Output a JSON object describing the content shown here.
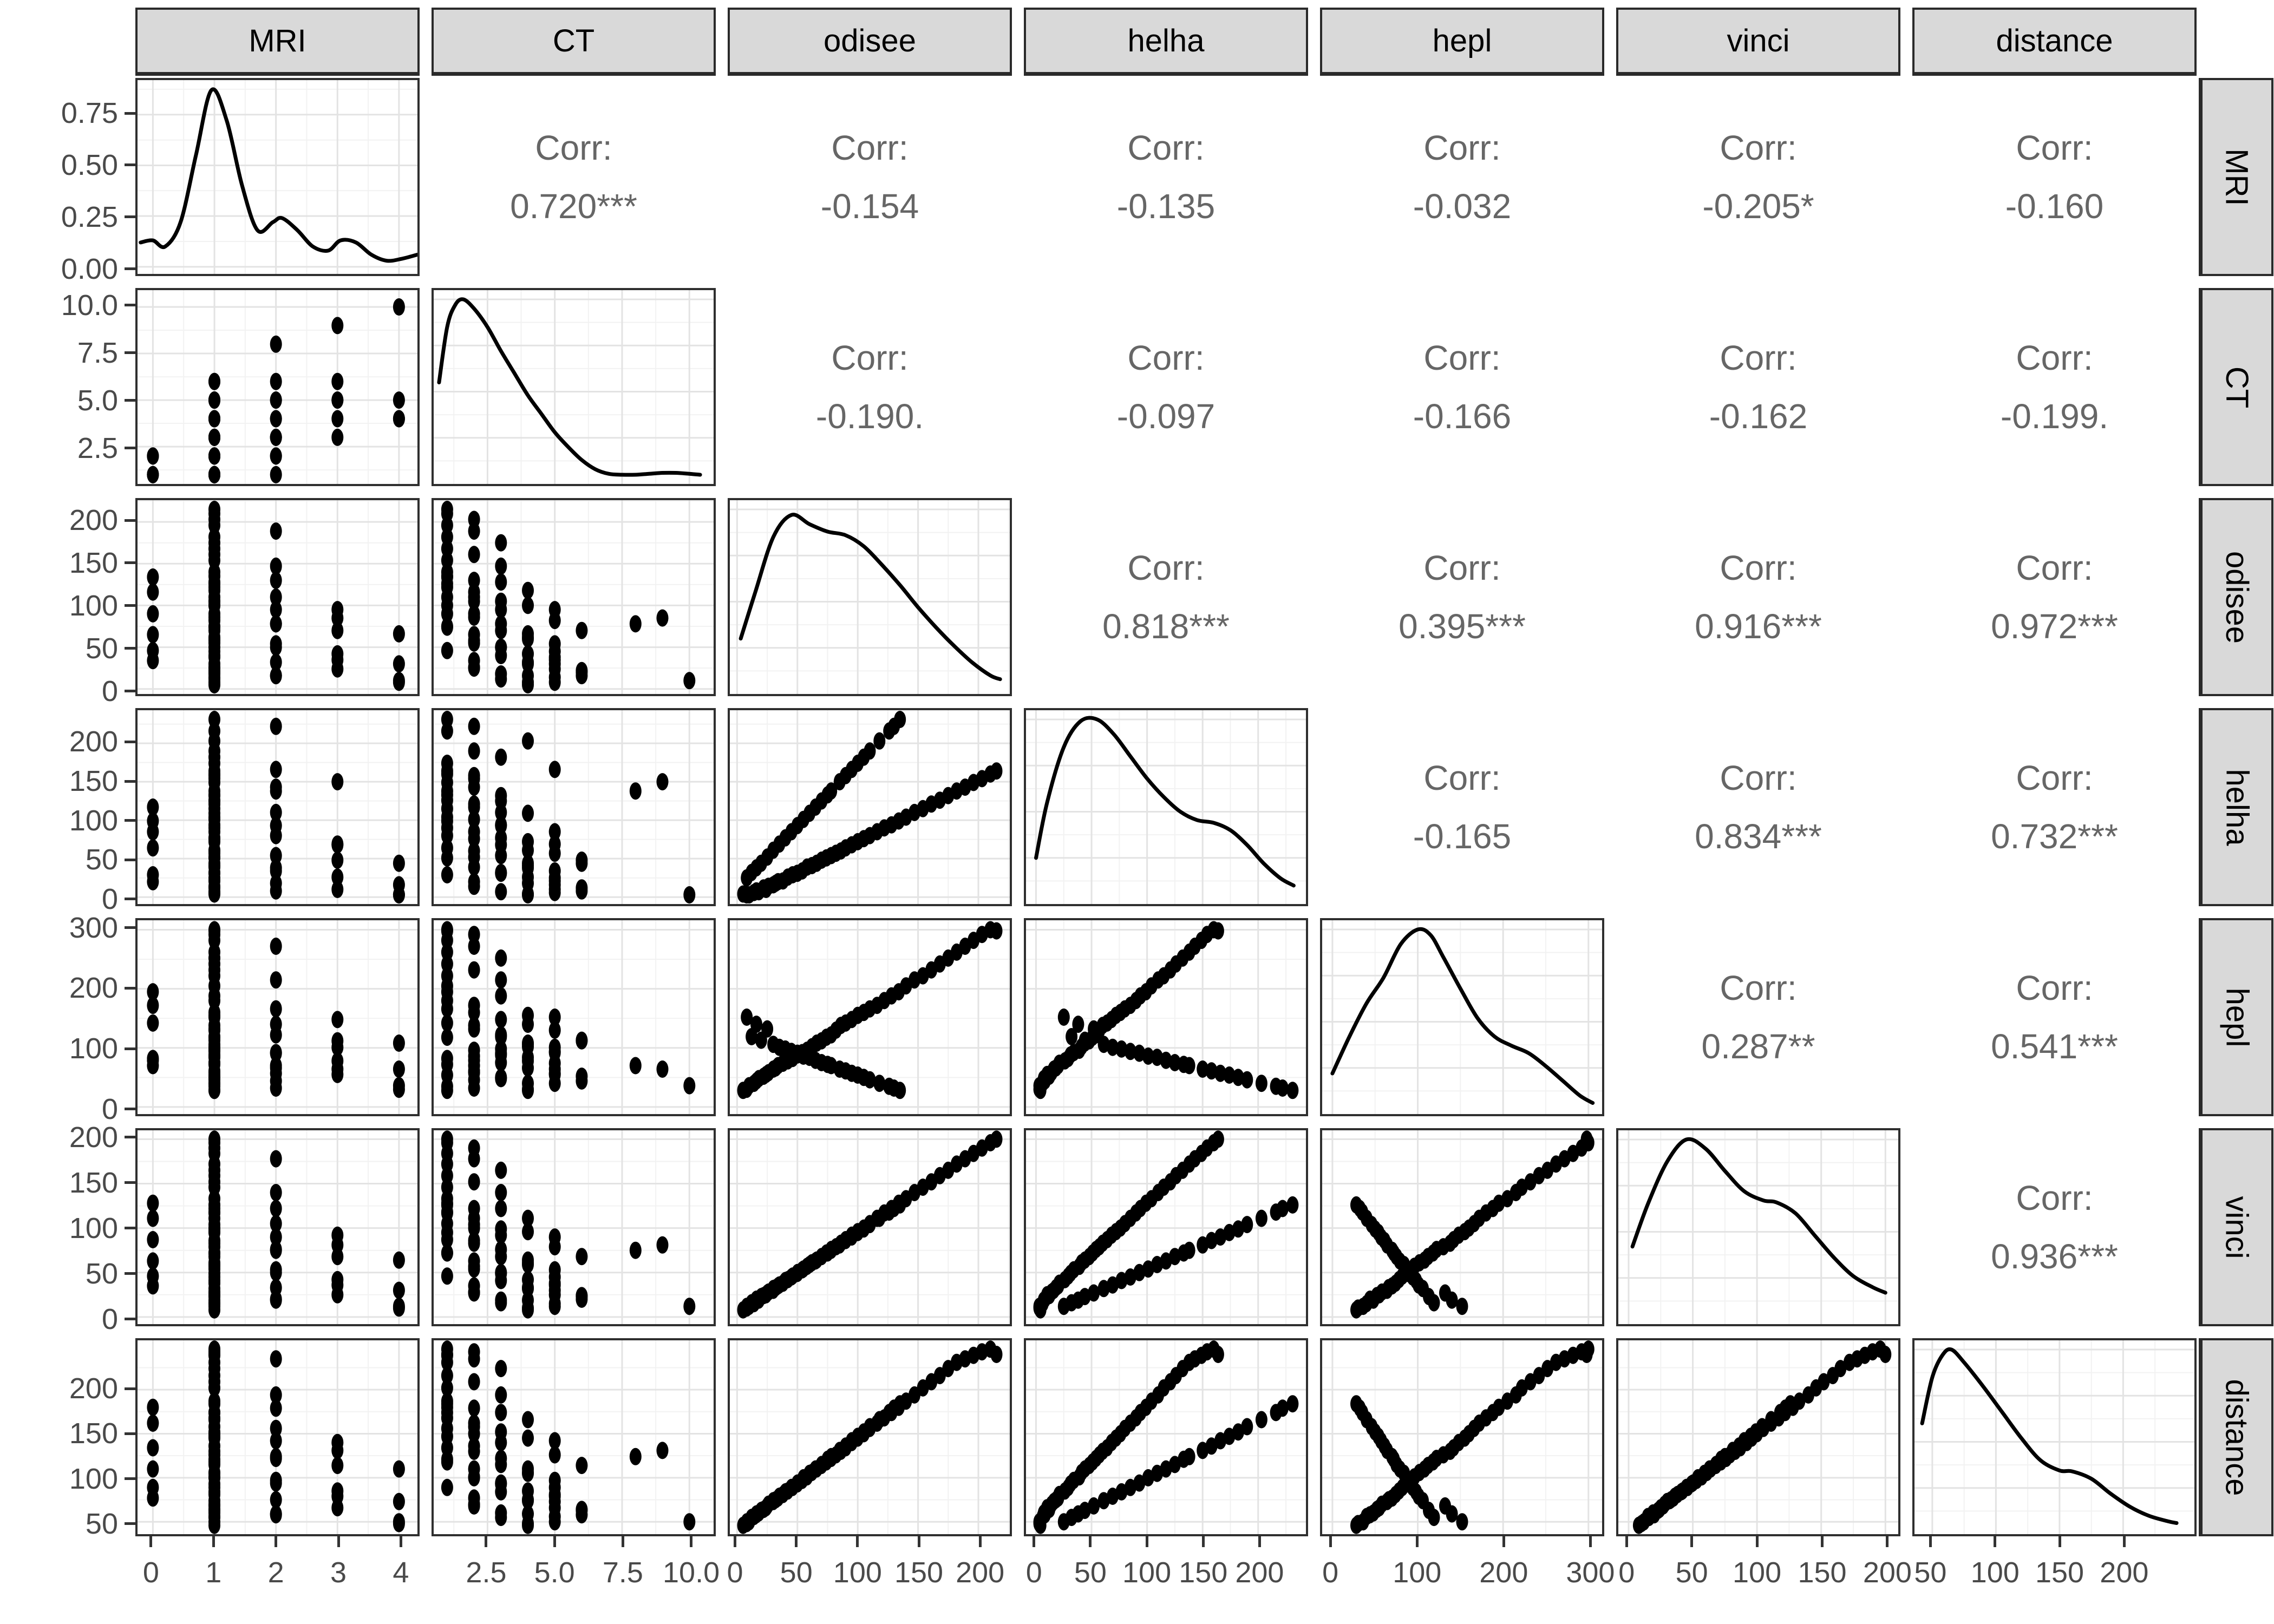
{
  "chart_data": {
    "type": "scatter",
    "plot_kind": "scatterplot-matrix (ggpairs)",
    "title": "",
    "xlabel": "",
    "ylabel": "",
    "legend": "none",
    "grid": "on",
    "variables": [
      "MRI",
      "CT",
      "odisee",
      "helha",
      "hepl",
      "vinci",
      "distance"
    ],
    "corr_label_prefix": "Corr:",
    "correlations": {
      "MRI": {
        "CT": "0.720***",
        "odisee": "-0.154",
        "helha": "-0.135",
        "hepl": "-0.032",
        "vinci": "-0.205*",
        "distance": "-0.160"
      },
      "CT": {
        "odisee": "-0.190.",
        "helha": "-0.097",
        "hepl": "-0.166",
        "vinci": "-0.162",
        "distance": "-0.199."
      },
      "odisee": {
        "helha": "0.818***",
        "hepl": "0.395***",
        "vinci": "0.916***",
        "distance": "0.972***"
      },
      "helha": {
        "hepl": "-0.165",
        "vinci": "0.834***",
        "distance": "0.732***"
      },
      "hepl": {
        "vinci": "0.287**",
        "distance": "0.541***"
      },
      "vinci": {
        "distance": "0.936***"
      }
    },
    "axes": {
      "MRI": {
        "domain": [
          -0.25,
          4.3
        ],
        "ticks": [
          0,
          1,
          2,
          3,
          4
        ],
        "labels": [
          "0",
          "1",
          "2",
          "3",
          "4"
        ]
      },
      "CT": {
        "domain": [
          0.5,
          10.9
        ],
        "ticks": [
          2.5,
          5.0,
          7.5,
          10.0
        ],
        "labels": [
          "2.5",
          "5.0",
          "7.5",
          "10.0"
        ]
      },
      "odisee": {
        "domain": [
          -6,
          226
        ],
        "ticks": [
          0,
          50,
          100,
          150,
          200
        ],
        "labels": [
          "0",
          "50",
          "100",
          "150",
          "200"
        ]
      },
      "helha": {
        "domain": [
          -9,
          243
        ],
        "ticks": [
          0,
          50,
          100,
          150,
          200
        ],
        "labels": [
          "0",
          "50",
          "100",
          "150",
          "200"
        ]
      },
      "hepl": {
        "domain": [
          -12,
          316
        ],
        "ticks": [
          0,
          100,
          200,
          300
        ],
        "labels": [
          "0",
          "100",
          "200",
          "300"
        ]
      },
      "vinci": {
        "domain": [
          -8,
          210
        ],
        "ticks": [
          0,
          50,
          100,
          150,
          200
        ],
        "labels": [
          "0",
          "50",
          "100",
          "150",
          "200"
        ]
      },
      "distance": {
        "domain": [
          36,
          256
        ],
        "ticks": [
          50,
          100,
          150,
          200
        ],
        "labels": [
          "50",
          "100",
          "150",
          "200"
        ]
      }
    },
    "density_y_axis": {
      "domain": [
        -0.035,
        0.92
      ],
      "ticks": [
        0,
        0.25,
        0.5,
        0.75
      ],
      "labels": [
        "0.00",
        "0.25",
        "0.50",
        "0.75"
      ]
    },
    "densities": {
      "MRI": [
        [
          -0.2,
          0.12
        ],
        [
          0,
          0.13
        ],
        [
          0.2,
          0.1
        ],
        [
          0.45,
          0.22
        ],
        [
          0.7,
          0.55
        ],
        [
          0.95,
          0.87
        ],
        [
          1.2,
          0.72
        ],
        [
          1.45,
          0.4
        ],
        [
          1.7,
          0.18
        ],
        [
          1.95,
          0.22
        ],
        [
          2.1,
          0.24
        ],
        [
          2.35,
          0.18
        ],
        [
          2.6,
          0.1
        ],
        [
          2.85,
          0.08
        ],
        [
          3.05,
          0.13
        ],
        [
          3.3,
          0.12
        ],
        [
          3.55,
          0.06
        ],
        [
          3.8,
          0.03
        ],
        [
          4.05,
          0.04
        ],
        [
          4.3,
          0.06
        ]
      ],
      "CT": [
        [
          0.7,
          0.55
        ],
        [
          1.0,
          0.85
        ],
        [
          1.3,
          0.97
        ],
        [
          1.6,
          1.0
        ],
        [
          2.0,
          0.95
        ],
        [
          2.5,
          0.85
        ],
        [
          3.0,
          0.72
        ],
        [
          3.5,
          0.6
        ],
        [
          4.0,
          0.48
        ],
        [
          4.5,
          0.38
        ],
        [
          5.0,
          0.28
        ],
        [
          5.5,
          0.2
        ],
        [
          6.0,
          0.13
        ],
        [
          6.5,
          0.08
        ],
        [
          7.0,
          0.055
        ],
        [
          7.5,
          0.05
        ],
        [
          8.0,
          0.05
        ],
        [
          8.5,
          0.055
        ],
        [
          9.0,
          0.06
        ],
        [
          9.5,
          0.06
        ],
        [
          10.0,
          0.055
        ],
        [
          10.4,
          0.05
        ]
      ],
      "odisee": [
        [
          3,
          0.3
        ],
        [
          15,
          0.55
        ],
        [
          30,
          0.85
        ],
        [
          45,
          0.97
        ],
        [
          60,
          0.92
        ],
        [
          75,
          0.88
        ],
        [
          90,
          0.86
        ],
        [
          105,
          0.8
        ],
        [
          120,
          0.7
        ],
        [
          135,
          0.59
        ],
        [
          150,
          0.47
        ],
        [
          165,
          0.36
        ],
        [
          180,
          0.26
        ],
        [
          195,
          0.17
        ],
        [
          210,
          0.1
        ],
        [
          218,
          0.08
        ]
      ],
      "helha": [
        [
          0,
          0.25
        ],
        [
          10,
          0.55
        ],
        [
          25,
          0.85
        ],
        [
          40,
          0.99
        ],
        [
          55,
          1.0
        ],
        [
          70,
          0.92
        ],
        [
          85,
          0.8
        ],
        [
          100,
          0.68
        ],
        [
          115,
          0.58
        ],
        [
          130,
          0.5
        ],
        [
          145,
          0.455
        ],
        [
          160,
          0.44
        ],
        [
          175,
          0.4
        ],
        [
          190,
          0.32
        ],
        [
          205,
          0.22
        ],
        [
          220,
          0.14
        ],
        [
          232,
          0.1
        ]
      ],
      "hepl": [
        [
          0,
          0.22
        ],
        [
          20,
          0.42
        ],
        [
          40,
          0.6
        ],
        [
          60,
          0.74
        ],
        [
          80,
          0.92
        ],
        [
          100,
          1.0
        ],
        [
          115,
          0.97
        ],
        [
          130,
          0.85
        ],
        [
          150,
          0.68
        ],
        [
          170,
          0.52
        ],
        [
          190,
          0.42
        ],
        [
          210,
          0.37
        ],
        [
          230,
          0.33
        ],
        [
          250,
          0.26
        ],
        [
          270,
          0.18
        ],
        [
          290,
          0.1
        ],
        [
          305,
          0.06
        ]
      ],
      "vinci": [
        [
          3,
          0.42
        ],
        [
          15,
          0.65
        ],
        [
          30,
          0.88
        ],
        [
          45,
          1.0
        ],
        [
          60,
          0.95
        ],
        [
          75,
          0.83
        ],
        [
          90,
          0.72
        ],
        [
          105,
          0.67
        ],
        [
          115,
          0.66
        ],
        [
          130,
          0.6
        ],
        [
          145,
          0.48
        ],
        [
          160,
          0.36
        ],
        [
          175,
          0.26
        ],
        [
          190,
          0.2
        ],
        [
          200,
          0.17
        ]
      ],
      "distance": [
        [
          42,
          0.6
        ],
        [
          50,
          0.85
        ],
        [
          58,
          0.97
        ],
        [
          65,
          1.0
        ],
        [
          75,
          0.93
        ],
        [
          90,
          0.8
        ],
        [
          105,
          0.66
        ],
        [
          120,
          0.52
        ],
        [
          135,
          0.4
        ],
        [
          150,
          0.345
        ],
        [
          160,
          0.34
        ],
        [
          175,
          0.3
        ],
        [
          190,
          0.22
        ],
        [
          205,
          0.15
        ],
        [
          220,
          0.1
        ],
        [
          235,
          0.07
        ],
        [
          242,
          0.06
        ]
      ]
    },
    "observations_columns": [
      "MRI",
      "CT",
      "odisee",
      "helha",
      "hepl",
      "vinci",
      "distance"
    ],
    "observations": [
      [
        1,
        4,
        5,
        4,
        28,
        8,
        46
      ],
      [
        4,
        4,
        8,
        3,
        30,
        10,
        48
      ],
      [
        4,
        10,
        10,
        3,
        36,
        12,
        50
      ],
      [
        1,
        5,
        14,
        6,
        40,
        15,
        56
      ],
      [
        2,
        6,
        16,
        8,
        44,
        20,
        58
      ],
      [
        1,
        3,
        18,
        7,
        48,
        19,
        60
      ],
      [
        1,
        6,
        22,
        12,
        52,
        24,
        64
      ],
      [
        3,
        5,
        24,
        10,
        55,
        25,
        66
      ],
      [
        1,
        2,
        26,
        14,
        58,
        28,
        70
      ],
      [
        4,
        5,
        30,
        16,
        64,
        30,
        73
      ],
      [
        2,
        4,
        32,
        18,
        66,
        33,
        75
      ],
      [
        0,
        2,
        34,
        20,
        70,
        35,
        77
      ],
      [
        1,
        5,
        38,
        21,
        74,
        38,
        81
      ],
      [
        3,
        4,
        42,
        26,
        78,
        42,
        85
      ],
      [
        0,
        1,
        46,
        29,
        82,
        46,
        89
      ],
      [
        1,
        3,
        50,
        31,
        88,
        49,
        93
      ],
      [
        2,
        5,
        54,
        34,
        92,
        53,
        97
      ],
      [
        1,
        2,
        58,
        39,
        96,
        57,
        101
      ],
      [
        1,
        4,
        62,
        41,
        102,
        61,
        106
      ],
      [
        4,
        4,
        66,
        44,
        108,
        64,
        110
      ],
      [
        3,
        6,
        70,
        48,
        112,
        68,
        114
      ],
      [
        1,
        1,
        74,
        51,
        118,
        72,
        118
      ],
      [
        2,
        3,
        78,
        54,
        122,
        76,
        122
      ],
      [
        1,
        5,
        82,
        57,
        130,
        79,
        126
      ],
      [
        1,
        2,
        86,
        60,
        138,
        83,
        130
      ],
      [
        0,
        1,
        90,
        64,
        142,
        87,
        134
      ],
      [
        3,
        3,
        95,
        68,
        148,
        92,
        140
      ],
      [
        1,
        4,
        100,
        72,
        155,
        96,
        145
      ],
      [
        1,
        2,
        105,
        76,
        160,
        100,
        150
      ],
      [
        2,
        1,
        110,
        80,
        166,
        105,
        156
      ],
      [
        0,
        2,
        116,
        85,
        172,
        111,
        162
      ],
      [
        1,
        1,
        122,
        90,
        180,
        117,
        168
      ],
      [
        1,
        3,
        128,
        94,
        188,
        122,
        174
      ],
      [
        0,
        1,
        134,
        99,
        195,
        128,
        180
      ],
      [
        1,
        1,
        140,
        104,
        205,
        133,
        187
      ],
      [
        2,
        3,
        147,
        110,
        215,
        140,
        194
      ],
      [
        1,
        1,
        154,
        115,
        222,
        146,
        202
      ],
      [
        1,
        2,
        161,
        121,
        232,
        152,
        209
      ],
      [
        1,
        1,
        168,
        126,
        242,
        159,
        216
      ],
      [
        1,
        3,
        175,
        132,
        252,
        165,
        224
      ],
      [
        1,
        1,
        182,
        138,
        262,
        172,
        231
      ],
      [
        2,
        2,
        189,
        143,
        272,
        178,
        235
      ],
      [
        1,
        1,
        196,
        149,
        282,
        184,
        239
      ],
      [
        1,
        2,
        203,
        154,
        292,
        190,
        243
      ],
      [
        1,
        1,
        210,
        160,
        300,
        196,
        246
      ],
      [
        1,
        1,
        215,
        164,
        298,
        200,
        240
      ],
      [
        1,
        5,
        8,
        25,
        152,
        12,
        50
      ],
      [
        1,
        3,
        12,
        32,
        119,
        16,
        55
      ],
      [
        2,
        4,
        16,
        38,
        140,
        19,
        59
      ],
      [
        1,
        6,
        20,
        44,
        113,
        23,
        63
      ],
      [
        1,
        2,
        25,
        52,
        132,
        27,
        68
      ],
      [
        1,
        4,
        30,
        61,
        106,
        32,
        74
      ],
      [
        3,
        5,
        35,
        69,
        101,
        36,
        79
      ],
      [
        1,
        3,
        40,
        77,
        98,
        41,
        84
      ],
      [
        1,
        5,
        45,
        85,
        94,
        45,
        89
      ],
      [
        2,
        3,
        50,
        93,
        91,
        50,
        94
      ],
      [
        1,
        2,
        55,
        101,
        86,
        54,
        100
      ],
      [
        1,
        4,
        60,
        109,
        84,
        59,
        105
      ],
      [
        0,
        2,
        65,
        117,
        79,
        63,
        110
      ],
      [
        1,
        3,
        70,
        125,
        75,
        68,
        115
      ],
      [
        1,
        1,
        75,
        133,
        72,
        72,
        121
      ],
      [
        2,
        8,
        78,
        138,
        70,
        75,
        124
      ],
      [
        3,
        9,
        85,
        150,
        64,
        81,
        131
      ],
      [
        1,
        2,
        90,
        158,
        61,
        86,
        136
      ],
      [
        2,
        5,
        95,
        166,
        57,
        90,
        142
      ],
      [
        1,
        1,
        100,
        174,
        54,
        95,
        147
      ],
      [
        1,
        3,
        105,
        182,
        50,
        99,
        152
      ],
      [
        1,
        2,
        110,
        190,
        46,
        104,
        158
      ],
      [
        1,
        4,
        118,
        203,
        40,
        111,
        166
      ],
      [
        1,
        1,
        126,
        216,
        35,
        118,
        174
      ],
      [
        2,
        2,
        130,
        222,
        32,
        122,
        179
      ],
      [
        1,
        1,
        135,
        231,
        28,
        126,
        184
      ]
    ],
    "style": {
      "strip_bg": "#d9d9d9",
      "strip_border": "#2a2a2a",
      "panel_border": "#2f2f2f",
      "grid_major": "#e3e3e3",
      "grid_minor": "#f2f2f2",
      "point_color": "#000000",
      "density_line_color": "#000000",
      "corr_text_color": "#666666",
      "axis_text_color": "#4a4a4a",
      "tick_mark_color": "#333333"
    }
  }
}
